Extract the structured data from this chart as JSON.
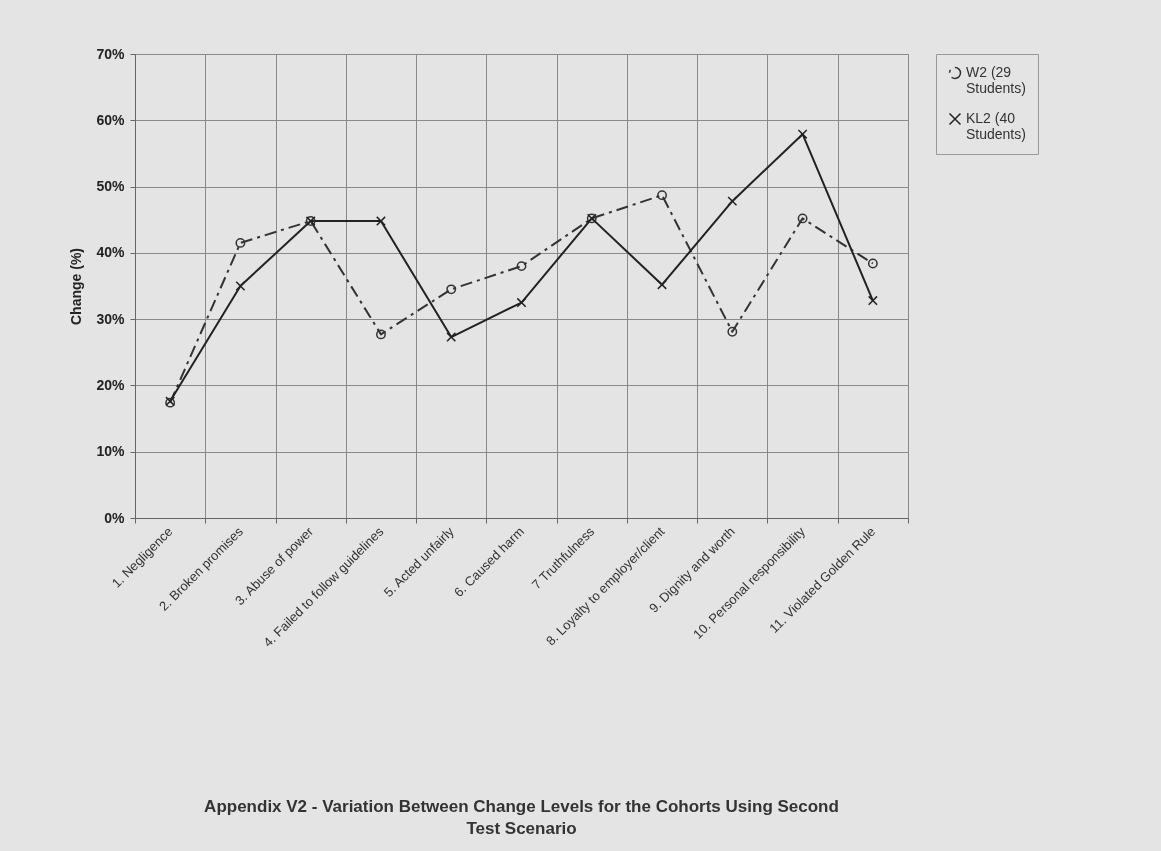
{
  "chart_data": {
    "type": "line",
    "title": "Appendix V2 - Variation Between Change Levels for the Cohorts Using Second Test Scenario",
    "ylabel": "Change (%)",
    "categories": [
      "1. Negligence",
      "2. Broken promises",
      "3. Abuse of power",
      "4. Failed to follow guidelines",
      "5. Acted unfairly",
      "6. Caused harm",
      "7 Truthfulness",
      "8. Loyalty to employer/client",
      "9. Dignity and worth",
      "10. Personal responsibility",
      "11. Violated Golden Rule"
    ],
    "series": [
      {
        "name": "W2 (29 Students)",
        "color": "#333333",
        "marker": "circle",
        "line_style": "dashed",
        "values": [
          17.4,
          41.5,
          44.8,
          27.7,
          34.5,
          38.0,
          45.2,
          48.7,
          28.1,
          45.2,
          38.4
        ]
      },
      {
        "name": "KL2 (40 Students)",
        "color": "#222222",
        "marker": "cross",
        "line_style": "solid",
        "values": [
          17.6,
          35.0,
          44.8,
          44.8,
          27.3,
          32.5,
          45.2,
          35.2,
          47.8,
          57.9,
          32.8
        ]
      }
    ],
    "ylim": [
      0,
      70
    ],
    "yticks": [
      {
        "value": 0,
        "label": "0%"
      },
      {
        "value": 10,
        "label": "10%"
      },
      {
        "value": 20,
        "label": "20%"
      },
      {
        "value": 30,
        "label": "30%"
      },
      {
        "value": 40,
        "label": "40%"
      },
      {
        "value": 50,
        "label": "50%"
      },
      {
        "value": 60,
        "label": "60%"
      },
      {
        "value": 70,
        "label": "70%"
      }
    ],
    "grid": true,
    "legend": "right"
  }
}
